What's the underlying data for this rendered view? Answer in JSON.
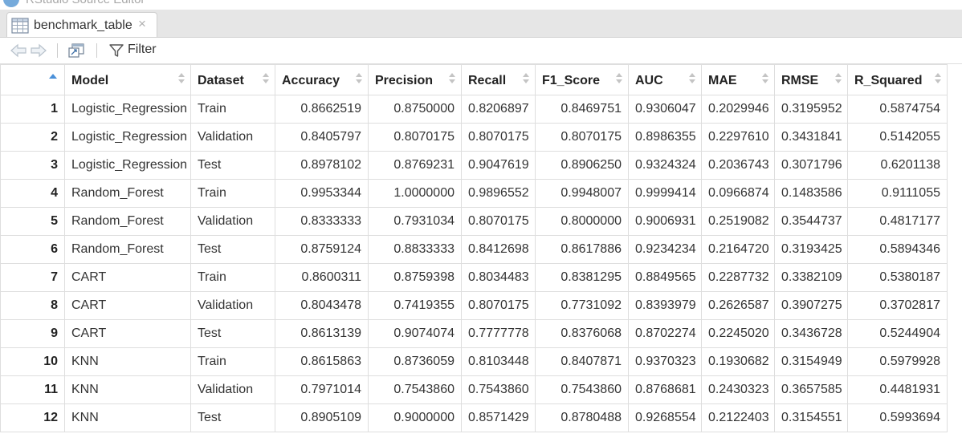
{
  "window": {
    "app_title": "RStudio Source Editor"
  },
  "tab": {
    "label": "benchmark_table",
    "close_glyph": "×"
  },
  "toolbar": {
    "filter_label": "Filter"
  },
  "table": {
    "columns": [
      "Model",
      "Dataset",
      "Accuracy",
      "Precision",
      "Recall",
      "F1_Score",
      "AUC",
      "MAE",
      "RMSE",
      "R_Squared"
    ],
    "rows": [
      {
        "n": "1",
        "cells": [
          "Logistic_Regression",
          "Train",
          "0.8662519",
          "0.8750000",
          "0.8206897",
          "0.8469751",
          "0.9306047",
          "0.2029946",
          "0.3195952",
          "0.5874754"
        ]
      },
      {
        "n": "2",
        "cells": [
          "Logistic_Regression",
          "Validation",
          "0.8405797",
          "0.8070175",
          "0.8070175",
          "0.8070175",
          "0.8986355",
          "0.2297610",
          "0.3431841",
          "0.5142055"
        ]
      },
      {
        "n": "3",
        "cells": [
          "Logistic_Regression",
          "Test",
          "0.8978102",
          "0.8769231",
          "0.9047619",
          "0.8906250",
          "0.9324324",
          "0.2036743",
          "0.3071796",
          "0.6201138"
        ]
      },
      {
        "n": "4",
        "cells": [
          "Random_Forest",
          "Train",
          "0.9953344",
          "1.0000000",
          "0.9896552",
          "0.9948007",
          "0.9999414",
          "0.0966874",
          "0.1483586",
          "0.9111055"
        ]
      },
      {
        "n": "5",
        "cells": [
          "Random_Forest",
          "Validation",
          "0.8333333",
          "0.7931034",
          "0.8070175",
          "0.8000000",
          "0.9006931",
          "0.2519082",
          "0.3544737",
          "0.4817177"
        ]
      },
      {
        "n": "6",
        "cells": [
          "Random_Forest",
          "Test",
          "0.8759124",
          "0.8833333",
          "0.8412698",
          "0.8617886",
          "0.9234234",
          "0.2164720",
          "0.3193425",
          "0.5894346"
        ]
      },
      {
        "n": "7",
        "cells": [
          "CART",
          "Train",
          "0.8600311",
          "0.8759398",
          "0.8034483",
          "0.8381295",
          "0.8849565",
          "0.2287732",
          "0.3382109",
          "0.5380187"
        ]
      },
      {
        "n": "8",
        "cells": [
          "CART",
          "Validation",
          "0.8043478",
          "0.7419355",
          "0.8070175",
          "0.7731092",
          "0.8393979",
          "0.2626587",
          "0.3907275",
          "0.3702817"
        ]
      },
      {
        "n": "9",
        "cells": [
          "CART",
          "Test",
          "0.8613139",
          "0.9074074",
          "0.7777778",
          "0.8376068",
          "0.8702274",
          "0.2245020",
          "0.3436728",
          "0.5244904"
        ]
      },
      {
        "n": "10",
        "cells": [
          "KNN",
          "Train",
          "0.8615863",
          "0.8736059",
          "0.8103448",
          "0.8407871",
          "0.9370323",
          "0.1930682",
          "0.3154949",
          "0.5979928"
        ]
      },
      {
        "n": "11",
        "cells": [
          "KNN",
          "Validation",
          "0.7971014",
          "0.7543860",
          "0.7543860",
          "0.7543860",
          "0.8768681",
          "0.2430323",
          "0.3657585",
          "0.4481931"
        ]
      },
      {
        "n": "12",
        "cells": [
          "KNN",
          "Test",
          "0.8905109",
          "0.9000000",
          "0.8571429",
          "0.8780488",
          "0.9268554",
          "0.2122403",
          "0.3154551",
          "0.5993694"
        ]
      }
    ]
  },
  "icons": {
    "logo": "rstudio-logo-icon",
    "tab": "table-grid-icon",
    "back": "arrow-left-icon",
    "forward": "arrow-right-icon",
    "popout": "popout-window-icon",
    "filter": "funnel-icon"
  },
  "colors": {
    "accent": "#4a90d9",
    "tabstrip": "#e6e6e6",
    "grid_border": "#dedede"
  }
}
